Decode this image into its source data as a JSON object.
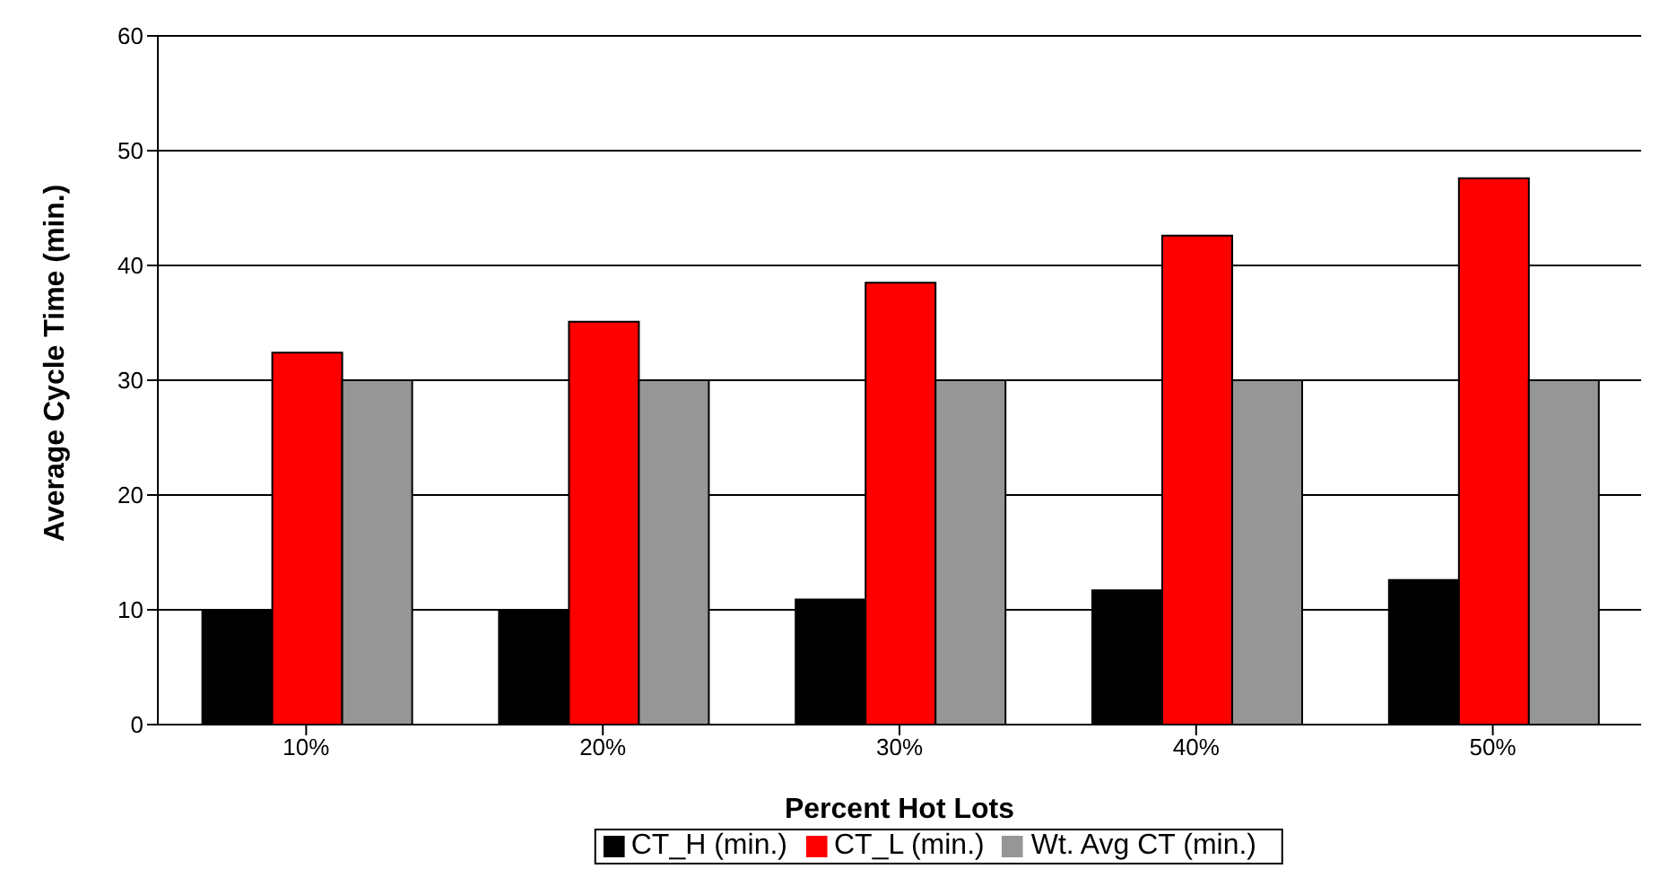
{
  "chart_data": {
    "type": "bar",
    "xlabel": "Percent Hot Lots",
    "ylabel": "Average Cycle Time (min.)",
    "categories": [
      "10%",
      "20%",
      "30%",
      "40%",
      "50%"
    ],
    "series": [
      {
        "name": "CT_H (min.)",
        "color": "#000000",
        "values": [
          10,
          10,
          10.9,
          11.7,
          12.6
        ]
      },
      {
        "name": "CT_L (min.)",
        "color": "#ff0000",
        "values": [
          32.4,
          35.1,
          38.5,
          42.6,
          47.6
        ]
      },
      {
        "name": "Wt. Avg CT (min.)",
        "color": "#969696",
        "values": [
          30,
          30,
          30,
          30,
          30
        ]
      }
    ],
    "ylim": [
      0,
      60
    ],
    "yticks": [
      0,
      10,
      20,
      30,
      40,
      50,
      60
    ],
    "grid": "y",
    "legend": "bottom"
  }
}
